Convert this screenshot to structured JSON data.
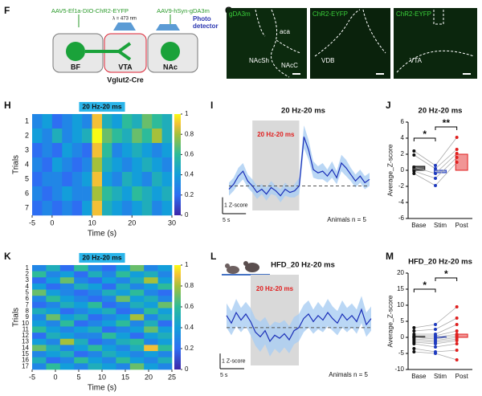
{
  "panel_labels": [
    "F",
    "G",
    "H",
    "I",
    "J",
    "K",
    "L",
    "M"
  ],
  "diagram": {
    "virus_left": "AAV5-Ef1a-DIO-ChR2-EYFP",
    "laser": "λ = 473 nm",
    "virus_right": "AAV9-hSyn-gDA3m",
    "detector": [
      "Photo",
      "detector"
    ],
    "regions": [
      "BF",
      "VTA",
      "NAc"
    ],
    "mouse_line": "Vglut2-Cre"
  },
  "histology": {
    "panels": [
      {
        "channel": "gDA3m",
        "regions": [
          "aca",
          "NAcSh",
          "NAcC"
        ]
      },
      {
        "channel": "ChR2-EYFP",
        "regions": [
          "VDB"
        ]
      },
      {
        "channel": "ChR2-EYFP",
        "regions": [
          "VTA"
        ]
      }
    ]
  },
  "chart_data": [
    {
      "type": "heatmap",
      "title": "20 Hz-20 ms",
      "title_background": "#2bb5ea",
      "x_label": "Time (s)",
      "y_label": "Trials",
      "row_labels": [
        "1",
        "2",
        "3",
        "4",
        "5",
        "6",
        "7"
      ],
      "xlim": [
        -5,
        30
      ],
      "xticks": [
        -5,
        0,
        10,
        20,
        30
      ],
      "clim": [
        0,
        1
      ],
      "colorbar_ticks": [
        0,
        0.2,
        0.4,
        0.6,
        0.8,
        1
      ],
      "values": [
        [
          0.3,
          0.4,
          0.2,
          0.3,
          0.4,
          0.3,
          0.9,
          0.5,
          0.4,
          0.6,
          0.5,
          0.7,
          0.6,
          0.5
        ],
        [
          0.4,
          0.3,
          0.5,
          0.3,
          0.4,
          0.5,
          1.0,
          0.7,
          0.6,
          0.5,
          0.7,
          0.6,
          0.8,
          0.5
        ],
        [
          0.2,
          0.3,
          0.2,
          0.4,
          0.3,
          0.2,
          0.9,
          0.6,
          0.3,
          0.4,
          0.5,
          0.4,
          0.3,
          0.4
        ],
        [
          0.3,
          0.2,
          0.4,
          0.3,
          0.2,
          0.3,
          0.8,
          0.5,
          0.4,
          0.3,
          0.4,
          0.5,
          0.4,
          0.3
        ],
        [
          0.2,
          0.3,
          0.3,
          0.2,
          0.3,
          0.4,
          0.9,
          0.4,
          0.3,
          0.5,
          0.4,
          0.3,
          0.5,
          0.4
        ],
        [
          0.3,
          0.2,
          0.3,
          0.4,
          0.3,
          0.3,
          0.8,
          0.6,
          0.5,
          0.4,
          0.6,
          0.5,
          0.4,
          0.5
        ],
        [
          0.2,
          0.3,
          0.2,
          0.3,
          0.2,
          0.4,
          0.9,
          0.5,
          0.4,
          0.3,
          0.4,
          0.5,
          0.3,
          0.4
        ]
      ]
    },
    {
      "type": "line",
      "title": "20 Hz-20 ms",
      "stim_window": [
        0,
        10
      ],
      "stim_label": "20 Hz-20 ms",
      "baseline": 0,
      "annotation": "Animals n = 5",
      "color": "#1a2fb8",
      "band_color": "#a9cdf2",
      "scale_bar": {
        "y": 1,
        "y_label": "1 Z-score",
        "x": 5,
        "x_label": "5 s"
      },
      "xlim": [
        -5,
        25
      ],
      "ylim": [
        -1.5,
        4
      ],
      "x": [
        -5,
        -4,
        -3,
        -2,
        -1,
        0,
        1,
        2,
        3,
        4,
        5,
        6,
        7,
        8,
        9,
        10,
        11,
        12,
        13,
        14,
        15,
        16,
        17,
        18,
        19,
        20,
        21,
        22,
        23,
        24,
        25
      ],
      "values": [
        -0.2,
        0.1,
        0.6,
        0.9,
        0.3,
        0.0,
        -0.4,
        -0.2,
        -0.5,
        -0.1,
        -0.3,
        -0.6,
        -0.2,
        -0.4,
        -0.3,
        0.0,
        3.0,
        2.2,
        1.0,
        0.8,
        0.9,
        0.6,
        1.0,
        0.5,
        1.4,
        1.1,
        0.7,
        0.3,
        0.6,
        0.2,
        0.4
      ],
      "error": [
        0.4,
        0.4,
        0.5,
        0.5,
        0.4,
        0.4,
        0.4,
        0.3,
        0.4,
        0.4,
        0.3,
        0.4,
        0.4,
        0.3,
        0.4,
        0.5,
        0.7,
        0.6,
        0.5,
        0.4,
        0.5,
        0.4,
        0.5,
        0.4,
        0.5,
        0.5,
        0.4,
        0.4,
        0.4,
        0.4,
        0.4
      ]
    },
    {
      "type": "bar_dot",
      "title": "20 Hz-20 ms",
      "y_label": "Average_Z-score",
      "categories": [
        "Base",
        "Stim",
        "Post"
      ],
      "values": [
        0.5,
        -0.3,
        2.0
      ],
      "bar_colors": [
        "#555555",
        "#9aa6d8",
        "#f08a8a"
      ],
      "point_colors": [
        "#111111",
        "#1f3bbf",
        "#e0201f"
      ],
      "points": [
        [
          2.4,
          1.9,
          0.4,
          -0.1,
          -0.4
        ],
        [
          0.6,
          0.2,
          -0.4,
          -1.0,
          -1.9
        ],
        [
          4.1,
          2.6,
          2.1,
          1.6,
          1.0
        ]
      ],
      "significance": [
        {
          "label": "*"
        },
        {
          "label": "**"
        }
      ],
      "ylim": [
        -6,
        6
      ],
      "yticks": [
        -6,
        -4,
        -2,
        0,
        2,
        4,
        6
      ]
    },
    {
      "type": "heatmap",
      "title": "20 Hz-20 ms",
      "title_background": "#2bb5ea",
      "x_label": "Time (s)",
      "y_label": "Trials",
      "row_labels": [
        "1",
        "2",
        "3",
        "4",
        "5",
        "6",
        "7",
        "8",
        "9",
        "10",
        "11",
        "12",
        "13",
        "14",
        "15",
        "16",
        "17"
      ],
      "xlim": [
        -5,
        25
      ],
      "xticks": [
        -5,
        0,
        5,
        10,
        15,
        20,
        25
      ],
      "clim": [
        0,
        1
      ],
      "colorbar_ticks": [
        0,
        0.2,
        0.4,
        0.6,
        0.8,
        1
      ],
      "values": [
        [
          0.3,
          0.5,
          0.2,
          0.6,
          0.3,
          0.2,
          0.4,
          0.7,
          0.3,
          0.4
        ],
        [
          0.6,
          0.3,
          0.4,
          0.2,
          0.5,
          0.3,
          0.6,
          0.4,
          0.5,
          0.3
        ],
        [
          0.2,
          0.4,
          0.7,
          0.3,
          0.2,
          0.4,
          0.3,
          0.5,
          0.8,
          0.4
        ],
        [
          0.4,
          0.2,
          0.3,
          0.5,
          0.4,
          0.2,
          0.5,
          0.3,
          0.4,
          0.6
        ],
        [
          0.7,
          0.4,
          0.3,
          0.2,
          0.3,
          0.5,
          0.4,
          0.6,
          0.3,
          0.2
        ],
        [
          0.3,
          0.6,
          0.4,
          0.3,
          0.2,
          0.3,
          0.7,
          0.4,
          0.5,
          0.3
        ],
        [
          0.2,
          0.3,
          0.5,
          0.4,
          0.6,
          0.2,
          0.3,
          0.5,
          0.4,
          0.7
        ],
        [
          0.5,
          0.4,
          0.2,
          0.3,
          0.4,
          0.5,
          0.2,
          0.3,
          0.6,
          0.4
        ],
        [
          0.3,
          0.7,
          0.4,
          0.5,
          0.2,
          0.3,
          0.4,
          0.8,
          0.3,
          0.5
        ],
        [
          0.4,
          0.3,
          0.6,
          0.2,
          0.3,
          0.4,
          0.6,
          0.3,
          0.5,
          0.2
        ],
        [
          0.6,
          0.4,
          0.3,
          0.4,
          0.5,
          0.2,
          0.3,
          0.4,
          0.7,
          0.4
        ],
        [
          0.2,
          0.5,
          0.4,
          0.3,
          0.3,
          0.6,
          0.4,
          0.2,
          0.4,
          0.5
        ],
        [
          0.4,
          0.3,
          0.8,
          0.5,
          0.2,
          0.3,
          0.5,
          0.6,
          0.3,
          0.4
        ],
        [
          0.7,
          0.5,
          0.3,
          0.4,
          0.6,
          0.4,
          0.3,
          0.5,
          0.9,
          0.6
        ],
        [
          0.3,
          0.4,
          0.5,
          0.2,
          0.3,
          0.5,
          0.4,
          0.3,
          0.4,
          0.3
        ],
        [
          0.5,
          0.2,
          0.3,
          0.6,
          0.4,
          0.3,
          0.6,
          0.4,
          0.3,
          0.5
        ],
        [
          0.3,
          0.6,
          0.4,
          0.3,
          0.5,
          0.4,
          0.3,
          0.7,
          0.4,
          0.3
        ]
      ]
    },
    {
      "type": "line",
      "title": "HFD_20 Hz-20 ms",
      "stim_window": [
        0,
        10
      ],
      "stim_label": "20 Hz-20 ms",
      "baseline": 0,
      "annotation": "Animals n = 5",
      "color": "#1a2fb8",
      "band_color": "#a9cdf2",
      "scale_bar": {
        "y": 1,
        "y_label": "1 Z-score",
        "x": 5,
        "x_label": "5 s"
      },
      "xlim": [
        -5,
        25
      ],
      "ylim": [
        -2.5,
        3.5
      ],
      "x": [
        -5,
        -4,
        -3,
        -2,
        -1,
        0,
        1,
        2,
        3,
        4,
        5,
        6,
        7,
        8,
        9,
        10,
        11,
        12,
        13,
        14,
        15,
        16,
        17,
        18,
        19,
        20,
        21,
        22,
        23,
        24,
        25
      ],
      "values": [
        0.8,
        0.3,
        1.0,
        0.5,
        0.9,
        0.4,
        -0.3,
        -0.6,
        -0.2,
        -0.9,
        -0.5,
        -0.7,
        -0.4,
        -0.8,
        -0.2,
        0.0,
        0.6,
        0.9,
        0.4,
        0.8,
        0.5,
        1.0,
        0.6,
        0.3,
        0.9,
        0.5,
        0.8,
        0.4,
        1.2,
        0.2,
        0.6
      ],
      "error": [
        0.8,
        0.8,
        0.9,
        0.8,
        0.8,
        0.9,
        0.9,
        1.0,
        0.9,
        1.0,
        0.9,
        1.0,
        0.9,
        0.9,
        0.9,
        0.9,
        0.9,
        0.9,
        0.8,
        0.9,
        0.8,
        0.9,
        0.8,
        0.8,
        0.9,
        0.8,
        0.8,
        0.8,
        0.9,
        0.8,
        0.8
      ]
    },
    {
      "type": "bar_dot",
      "title": "HFD_20 Hz-20 ms",
      "y_label": "Average_Z-score",
      "categories": [
        "Base",
        "Stim",
        "Post"
      ],
      "values": [
        0.3,
        0.2,
        1.0
      ],
      "bar_colors": [
        "#555555",
        "#9aa6d8",
        "#f08a8a"
      ],
      "point_colors": [
        "#111111",
        "#1f3bbf",
        "#e0201f"
      ],
      "points": [
        [
          3,
          2,
          1,
          0.5,
          0,
          0,
          -0.5,
          -1,
          -1.5,
          -2,
          -3.5,
          -4.5
        ],
        [
          4,
          2.5,
          1,
          0.5,
          0,
          -0.5,
          -1,
          -1.5,
          -2,
          -3,
          -4.5,
          -5
        ],
        [
          9.5,
          6,
          4,
          2,
          1,
          0.5,
          0,
          -0.5,
          -1,
          -2,
          -4,
          -7
        ]
      ],
      "significance": [
        {
          "label": "*"
        },
        {
          "label": "*"
        }
      ],
      "ylim": [
        -10,
        20
      ],
      "yticks": [
        -10,
        -5,
        0,
        5,
        10,
        15,
        20
      ]
    }
  ]
}
